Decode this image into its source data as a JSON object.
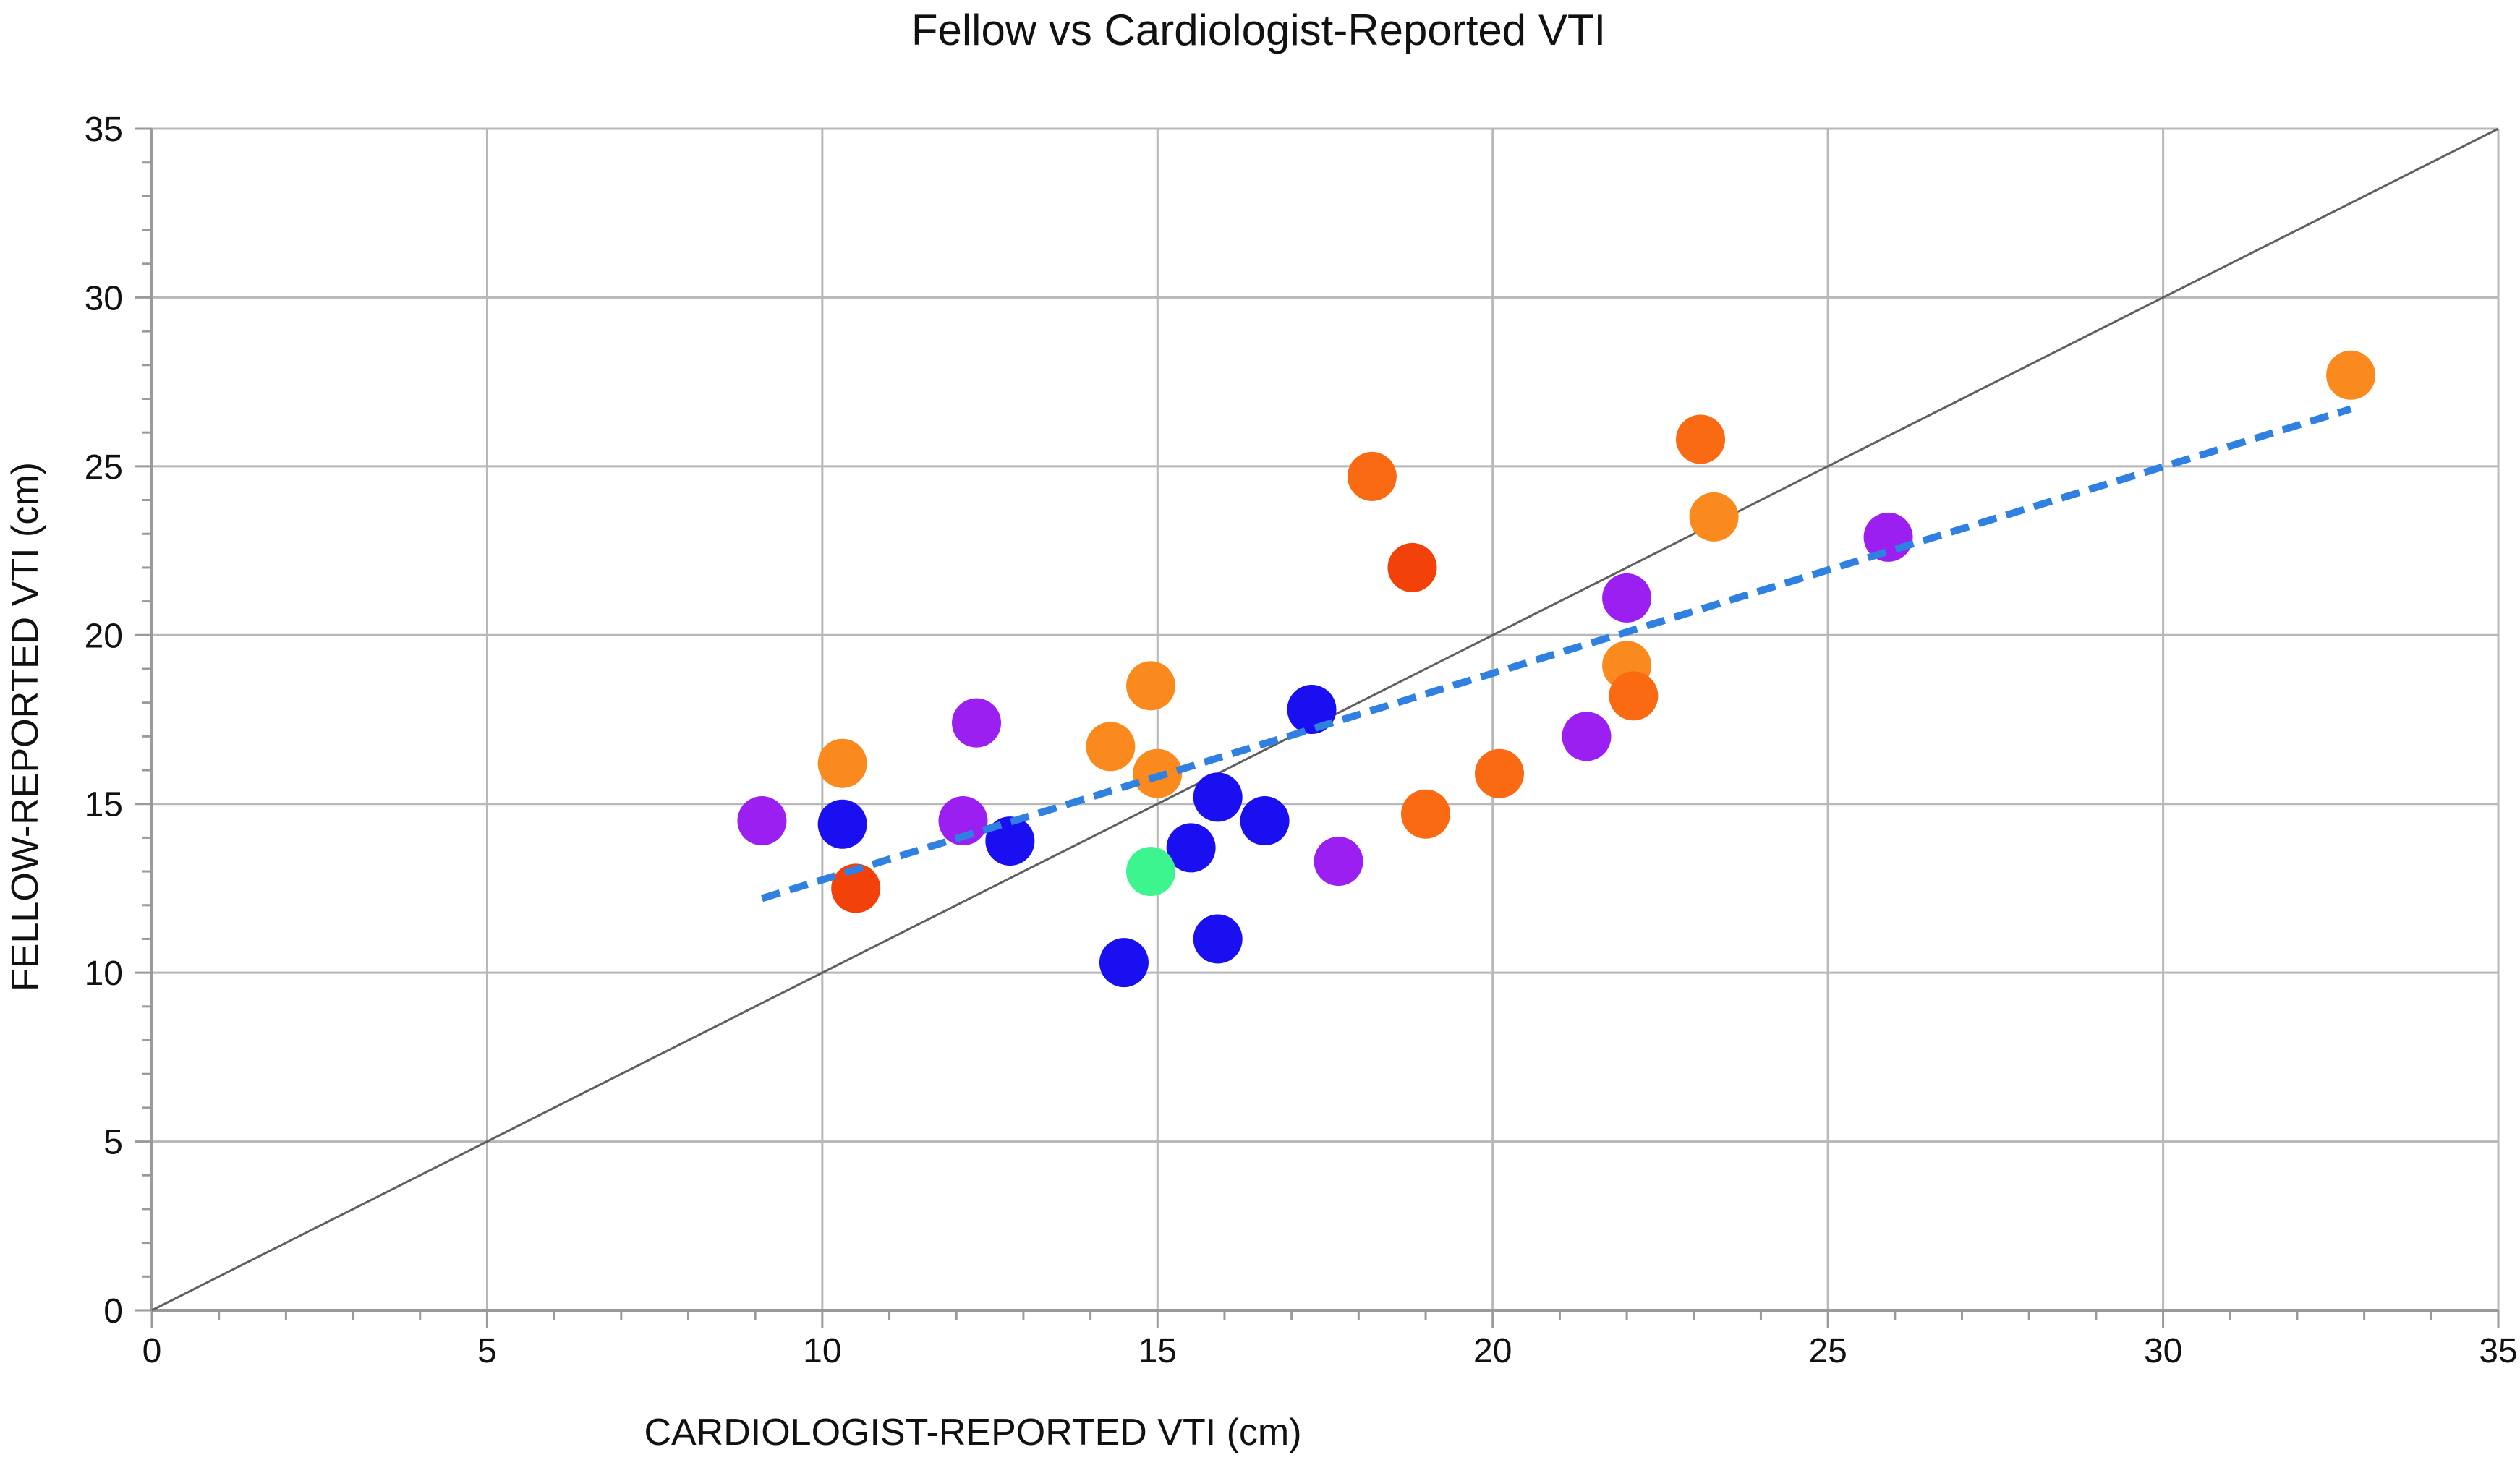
{
  "chart_data": {
    "type": "scatter",
    "title": "Fellow vs Cardiologist-Reported VTI",
    "xlabel": "CARDIOLOGIST-REPORTED VTI (cm)",
    "ylabel": "FELLOW-REPORTED VTI (cm)",
    "xlim": [
      0,
      35
    ],
    "ylim": [
      0,
      35
    ],
    "xticks": [
      0,
      5,
      10,
      15,
      20,
      25,
      30,
      35
    ],
    "yticks": [
      0,
      5,
      10,
      15,
      20,
      25,
      30,
      35
    ],
    "xtick_labels": [
      "0",
      "5",
      "10",
      "15",
      "20",
      "25",
      "30",
      "35"
    ],
    "ytick_labels": [
      "0",
      "5",
      "10",
      "15",
      "20",
      "25",
      "30",
      "35"
    ],
    "grid": true,
    "colors": {
      "purple": "#9b1ff0",
      "blue": "#1a0ff0",
      "orange": "#fa8a1e",
      "dark-orange": "#f96a12",
      "red": "#f2420a",
      "green": "#3df58f",
      "trendline": "#2f80e0",
      "identity": "#5f5f5f",
      "grid": "#b8b8b8"
    },
    "series": [
      {
        "name": "purple",
        "color": "#9b1ff0",
        "points": [
          [
            9.1,
            14.5
          ],
          [
            12.1,
            14.5
          ],
          [
            12.3,
            17.4
          ],
          [
            17.7,
            13.3
          ],
          [
            21.4,
            17.0
          ],
          [
            22.0,
            21.1
          ],
          [
            25.9,
            22.9
          ]
        ]
      },
      {
        "name": "blue",
        "color": "#1a0ff0",
        "points": [
          [
            10.3,
            14.4
          ],
          [
            12.8,
            13.9
          ],
          [
            14.5,
            10.3
          ],
          [
            15.5,
            13.7
          ],
          [
            15.9,
            15.2
          ],
          [
            15.9,
            11.0
          ],
          [
            16.6,
            14.5
          ],
          [
            17.3,
            17.8
          ]
        ]
      },
      {
        "name": "orange",
        "color": "#fa8a1e",
        "points": [
          [
            10.3,
            16.2
          ],
          [
            14.3,
            16.7
          ],
          [
            14.9,
            18.5
          ],
          [
            15.0,
            15.9
          ],
          [
            22.0,
            19.1
          ],
          [
            23.3,
            23.5
          ],
          [
            32.8,
            27.7
          ]
        ]
      },
      {
        "name": "dark-orange",
        "color": "#f96a12",
        "points": [
          [
            18.2,
            24.7
          ],
          [
            19.0,
            14.7
          ],
          [
            20.1,
            15.9
          ],
          [
            22.1,
            18.2
          ],
          [
            23.1,
            25.8
          ]
        ]
      },
      {
        "name": "red",
        "color": "#f2420a",
        "points": [
          [
            10.5,
            12.5
          ],
          [
            18.8,
            22.0
          ]
        ]
      },
      {
        "name": "green",
        "color": "#3df58f",
        "points": [
          [
            14.9,
            13.0
          ]
        ]
      }
    ],
    "trendline": {
      "style": "dashed",
      "x": [
        9.1,
        32.8
      ],
      "y": [
        12.2,
        26.7
      ]
    },
    "identity_line": {
      "x": [
        0,
        35
      ],
      "y": [
        0,
        35
      ]
    }
  }
}
